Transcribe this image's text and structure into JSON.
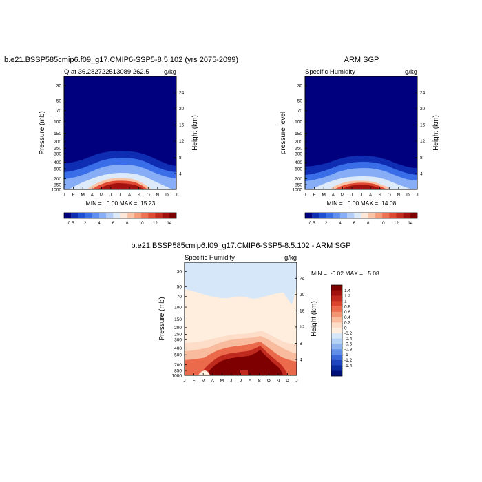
{
  "chart_data": [
    {
      "type": "heatmap",
      "title": "b.e21.BSSP585cmip6.f09_g17.CMIP6-SSP5-8.5.102 (yrs 2075-2099)",
      "left_label": "Q at 36.282722513089,262.5",
      "right_label": "g/kg",
      "ylabel": "Pressure (mb)",
      "y2label": "Height (km)",
      "x_ticks": [
        "J",
        "F",
        "M",
        "A",
        "M",
        "J",
        "J",
        "A",
        "S",
        "O",
        "N",
        "D",
        "J"
      ],
      "y_ticks": [
        30,
        50,
        70,
        100,
        150,
        200,
        250,
        300,
        400,
        500,
        700,
        850,
        1000
      ],
      "y2_ticks": [
        24,
        20,
        16,
        12,
        8,
        4
      ],
      "stats": "MIN =   0.00 MAX =  15.23",
      "min": 0.0,
      "max": 15.23,
      "colorbar_labels": [
        "0.5",
        "2",
        "4",
        "6",
        "8",
        "10",
        "12",
        "14"
      ]
    },
    {
      "type": "heatmap",
      "title": "ARM SGP",
      "left_label": "Specific Humidity",
      "right_label": "g/kg",
      "ylabel": "pressure level",
      "y2label": "Height (km)",
      "x_ticks": [
        "J",
        "F",
        "M",
        "A",
        "M",
        "J",
        "J",
        "A",
        "S",
        "O",
        "N",
        "D",
        "J"
      ],
      "y_ticks": [
        30,
        50,
        70,
        100,
        150,
        200,
        250,
        300,
        400,
        500,
        700,
        850,
        1000
      ],
      "y2_ticks": [
        24,
        20,
        16,
        12,
        8,
        4
      ],
      "stats": "MIN =   0.00 MAX =  14.08",
      "min": 0.0,
      "max": 14.08,
      "colorbar_labels": [
        "0.5",
        "2",
        "4",
        "6",
        "8",
        "10",
        "12",
        "14"
      ]
    },
    {
      "type": "heatmap",
      "title": "b.e21.BSSP585cmip6.f09_g17.CMIP6-SSP5-8.5.102 - ARM SGP",
      "left_label": "Specific Humidity",
      "right_label": "g/kg",
      "ylabel": "Pressure (mb)",
      "y2label": "Height (km)",
      "x_ticks": [
        "J",
        "F",
        "M",
        "A",
        "M",
        "J",
        "J",
        "A",
        "S",
        "O",
        "N",
        "D",
        "J"
      ],
      "y_ticks": [
        30,
        50,
        70,
        100,
        150,
        200,
        250,
        300,
        400,
        500,
        700,
        850,
        1000
      ],
      "y2_ticks": [
        24,
        20,
        16,
        12,
        8,
        4
      ],
      "stats": "MIN =  -0.02 MAX =   5.08",
      "min": -0.02,
      "max": 5.08,
      "colorbar_labels": [
        "1.4",
        "1.2",
        "1",
        "0.8",
        "0.6",
        "0.4",
        "0.2",
        "0",
        "-0.2",
        "-0.4",
        "-0.6",
        "-0.8",
        "-1",
        "-1.2",
        "-1.4"
      ]
    }
  ],
  "colors": {
    "abs_scale": [
      "#00007f",
      "#0f2db2",
      "#1f4fd6",
      "#3a6ee8",
      "#5f8ef0",
      "#86adf5",
      "#b3cdf7",
      "#ddeafa",
      "#fde7d9",
      "#fbc3a6",
      "#f79d7a",
      "#f07254",
      "#e04a33",
      "#c52a1e",
      "#a4120f",
      "#7f0000"
    ],
    "diff_scale": [
      "#7f0000",
      "#a0120e",
      "#c0291d",
      "#d9462d",
      "#ea6a4b",
      "#f39473",
      "#f8bb9e",
      "#fddcc8",
      "#ffeede",
      "#d6e7fa",
      "#b4d0f5",
      "#8cb3ef",
      "#618fe8",
      "#3a68da",
      "#1f45c0",
      "#0a2aa0",
      "#00107a"
    ]
  }
}
